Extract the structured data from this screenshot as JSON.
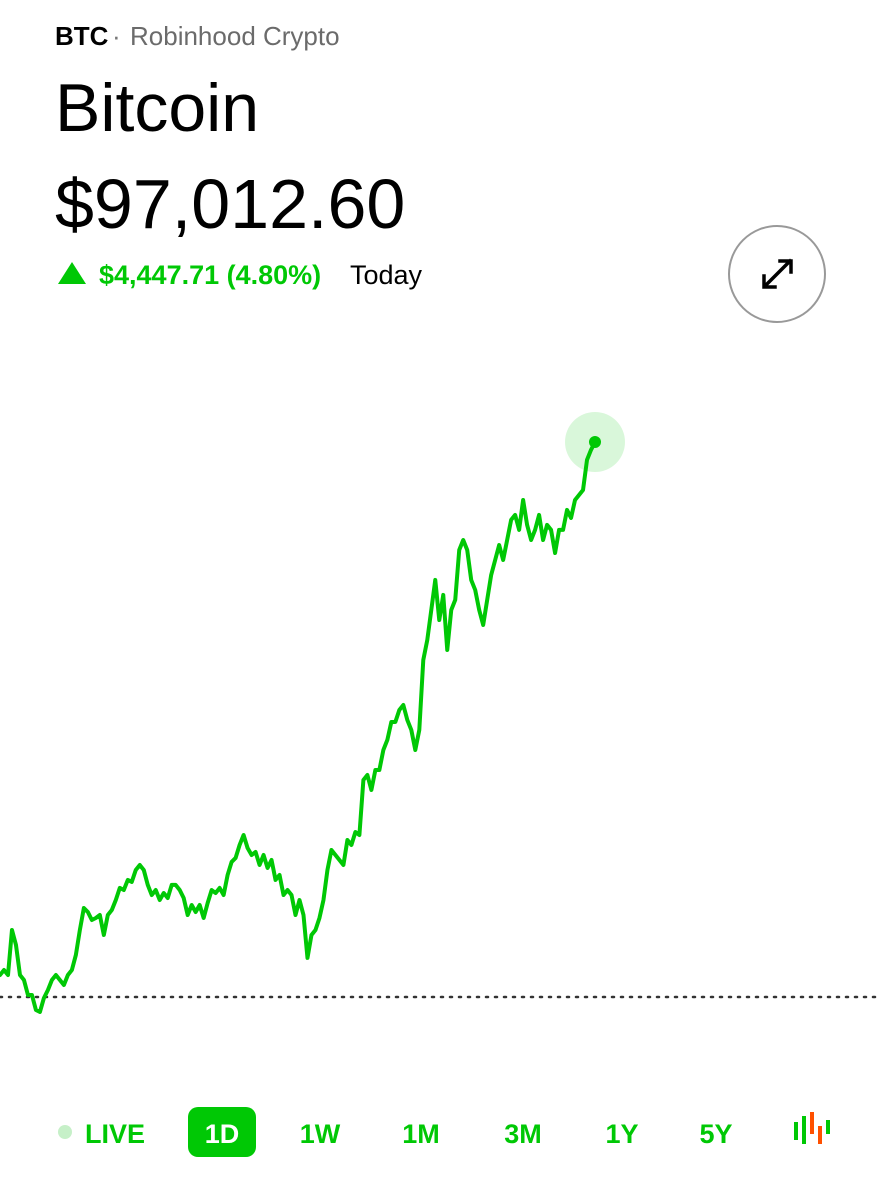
{
  "header": {
    "symbol": "BTC",
    "separator": "·",
    "source": "Robinhood Crypto",
    "name": "Bitcoin",
    "price": "$97,012.60",
    "change": "$4,447.71 (4.80%)",
    "period": "Today"
  },
  "ranges": {
    "items": [
      "LIVE",
      "1D",
      "1W",
      "1M",
      "3M",
      "1Y",
      "5Y"
    ],
    "selected": 1
  },
  "chart_data": {
    "type": "line",
    "color": "#00c805",
    "ylim": [
      92060,
      97910
    ],
    "reference_line": 92564.89,
    "values": [
      92741,
      92781,
      92741,
      93102,
      92982,
      92741,
      92701,
      92581,
      92581,
      92461,
      92445,
      92557,
      92621,
      92701,
      92741,
      92701,
      92661,
      92741,
      92781,
      92902,
      93102,
      93278,
      93246,
      93182,
      93198,
      93222,
      93062,
      93222,
      93262,
      93342,
      93439,
      93422,
      93503,
      93487,
      93583,
      93623,
      93583,
      93463,
      93382,
      93422,
      93342,
      93398,
      93358,
      93463,
      93463,
      93422,
      93358,
      93222,
      93302,
      93246,
      93302,
      93198,
      93318,
      93422,
      93398,
      93439,
      93382,
      93543,
      93647,
      93679,
      93783,
      93863,
      93759,
      93703,
      93727,
      93623,
      93703,
      93599,
      93663,
      93503,
      93543,
      93382,
      93422,
      93382,
      93222,
      93342,
      93222,
      92878,
      93062,
      93102,
      93198,
      93342,
      93583,
      93743,
      93703,
      93663,
      93623,
      93823,
      93783,
      93887,
      93863,
      94304,
      94344,
      94224,
      94384,
      94384,
      94544,
      94625,
      94769,
      94769,
      94865,
      94905,
      94785,
      94705,
      94544,
      94705,
      95266,
      95426,
      95666,
      95907,
      95586,
      95787,
      95346,
      95666,
      95747,
      96147,
      96227,
      96147,
      95907,
      95827,
      95666,
      95546,
      95747,
      95947,
      96067,
      96187,
      96067,
      96227,
      96388,
      96428,
      96308,
      96548,
      96348,
      96227,
      96308,
      96428,
      96227,
      96348,
      96308,
      96123,
      96308,
      96308,
      96468,
      96404,
      96548,
      96588,
      96628,
      96869,
      96949,
      97012.6
    ]
  }
}
